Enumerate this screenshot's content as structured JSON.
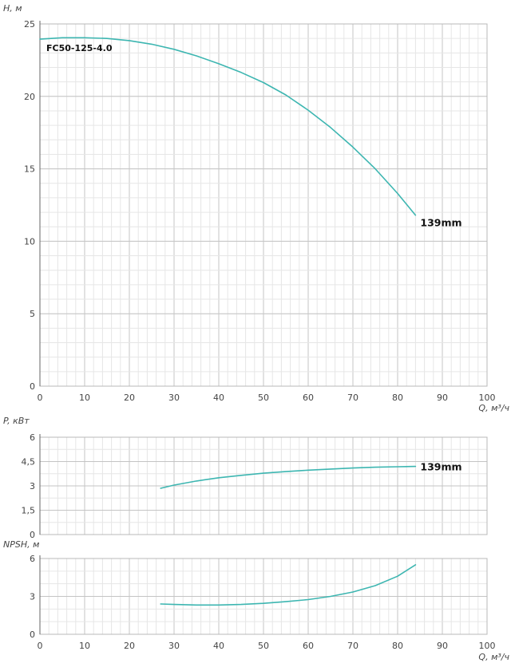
{
  "chart_data": [
    {
      "type": "line",
      "id": "head",
      "ylabel": "H, м",
      "xlabel": "Q, м³/ч",
      "xlim": [
        0,
        100
      ],
      "ylim": [
        0,
        25
      ],
      "xticks": [
        "0",
        "10",
        "20",
        "30",
        "40",
        "50",
        "60",
        "70",
        "80",
        "90",
        "100"
      ],
      "yticks": [
        "0",
        "5",
        "10",
        "15",
        "20",
        "25"
      ],
      "grid": true,
      "annotation": "FC50-125-4.0",
      "series": [
        {
          "name": "139mm",
          "color": "#3db6b1",
          "x": [
            0,
            5,
            10,
            15,
            20,
            25,
            30,
            35,
            40,
            45,
            50,
            55,
            60,
            65,
            70,
            75,
            80,
            84
          ],
          "y": [
            23.95,
            24.05,
            24.05,
            24.0,
            23.85,
            23.6,
            23.25,
            22.8,
            22.25,
            21.65,
            20.95,
            20.1,
            19.05,
            17.85,
            16.5,
            15.0,
            13.3,
            11.8
          ]
        }
      ]
    },
    {
      "type": "line",
      "id": "power",
      "ylabel": "P, кВт",
      "xlim": [
        0,
        100
      ],
      "ylim": [
        0,
        6
      ],
      "yticks": [
        "0",
        "1,5",
        "3",
        "4,5",
        "6"
      ],
      "grid": true,
      "series": [
        {
          "name": "139mm",
          "color": "#3db6b1",
          "x": [
            27,
            30,
            35,
            40,
            45,
            50,
            55,
            60,
            65,
            70,
            75,
            80,
            84
          ],
          "y": [
            2.85,
            3.05,
            3.3,
            3.5,
            3.65,
            3.78,
            3.88,
            3.97,
            4.04,
            4.1,
            4.15,
            4.18,
            4.2
          ]
        }
      ]
    },
    {
      "type": "line",
      "id": "npsh",
      "ylabel": "NPSH, м",
      "xlabel": "Q, м³/ч",
      "xlim": [
        0,
        100
      ],
      "ylim": [
        0,
        6
      ],
      "xticks": [
        "0",
        "10",
        "20",
        "30",
        "40",
        "50",
        "60",
        "70",
        "80",
        "90",
        "100"
      ],
      "yticks": [
        "0",
        "3",
        "6"
      ],
      "grid": true,
      "series": [
        {
          "name": "",
          "color": "#3db6b1",
          "x": [
            27,
            30,
            35,
            40,
            45,
            50,
            55,
            60,
            65,
            70,
            75,
            80,
            84
          ],
          "y": [
            2.4,
            2.36,
            2.32,
            2.32,
            2.36,
            2.45,
            2.58,
            2.75,
            3.0,
            3.35,
            3.85,
            4.6,
            5.5
          ]
        }
      ]
    }
  ]
}
